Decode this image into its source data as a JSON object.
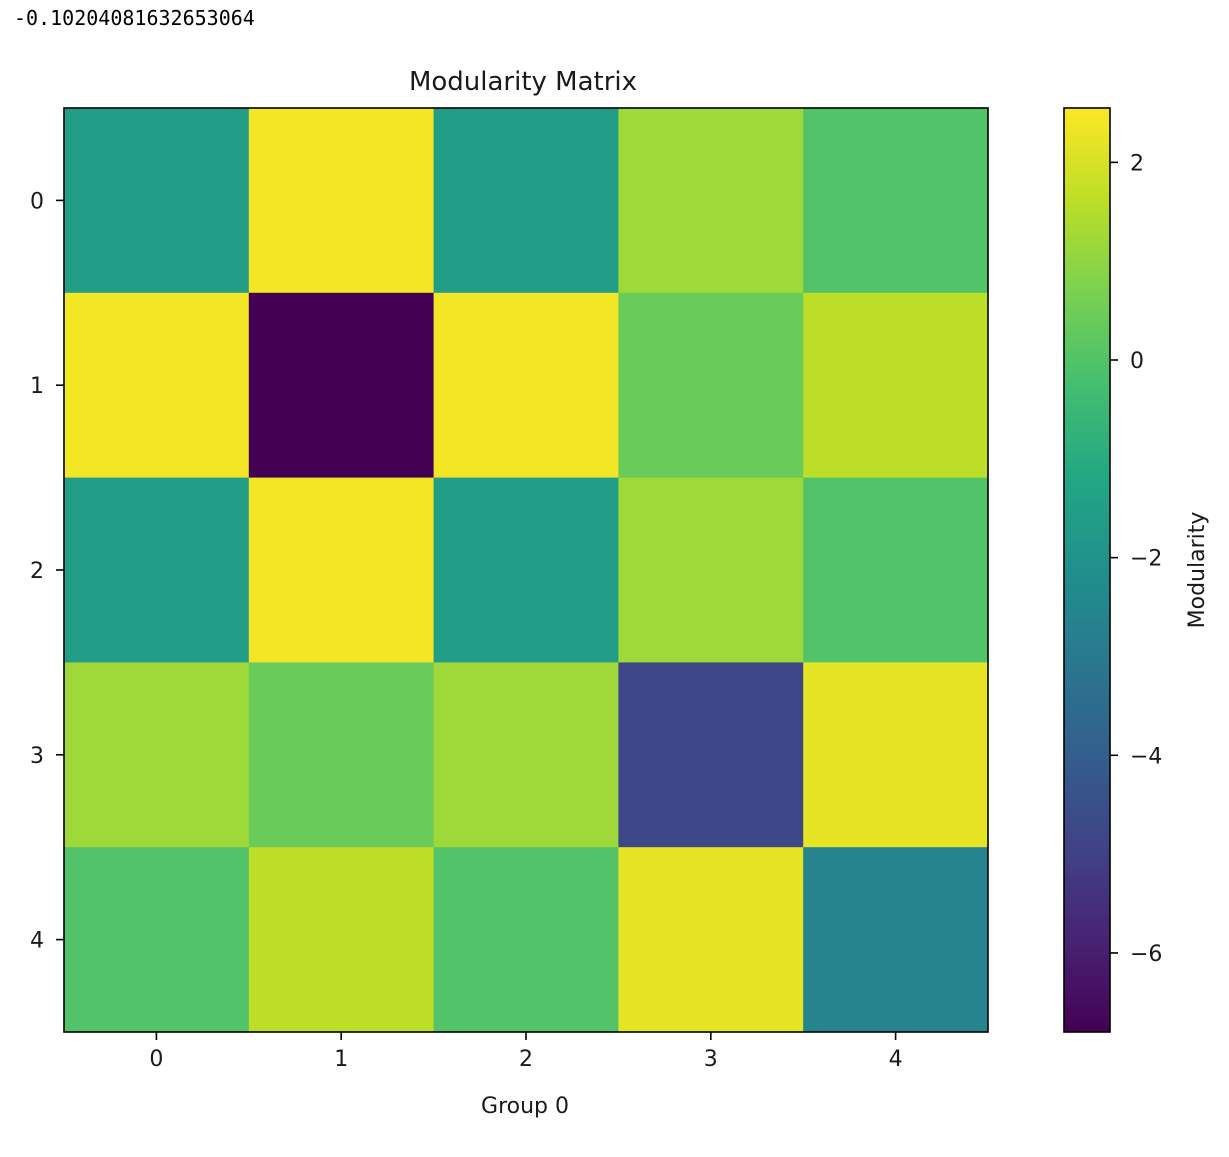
{
  "output": {
    "printed_value": "-0.10204081632653064"
  },
  "chart_data": {
    "type": "heatmap",
    "title": "Modularity Matrix",
    "xlabel": "Group 0",
    "ylabel": "",
    "x_ticks": [
      "0",
      "1",
      "2",
      "3",
      "4"
    ],
    "y_ticks": [
      "0",
      "1",
      "2",
      "3",
      "4"
    ],
    "matrix": [
      [
        -1.6,
        2.4,
        -1.6,
        1.2,
        0.0
      ],
      [
        2.4,
        -6.8,
        2.4,
        0.4,
        1.6
      ],
      [
        -1.6,
        2.4,
        -1.6,
        1.2,
        0.0
      ],
      [
        1.2,
        0.4,
        1.2,
        -4.8,
        2.2
      ],
      [
        0.0,
        1.6,
        0.0,
        2.2,
        -2.6
      ]
    ],
    "colormap": "viridis",
    "colorbar": {
      "label": "Modularity",
      "min": -6.8,
      "max": 2.55,
      "ticks": [
        2,
        0,
        -2,
        -4,
        -6
      ],
      "tick_labels": [
        "2",
        "0",
        "−2",
        "−4",
        "−6"
      ]
    }
  }
}
